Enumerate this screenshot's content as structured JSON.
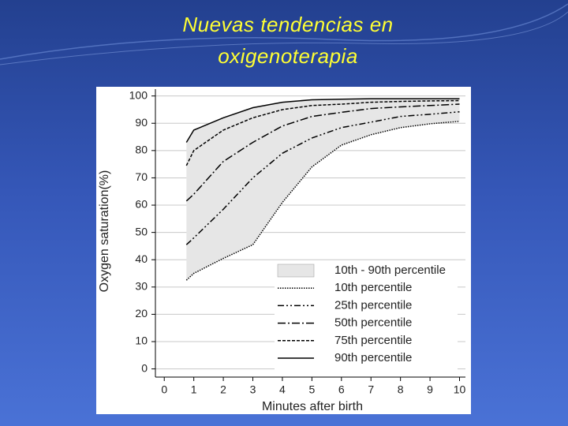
{
  "slide_title": [
    "Nuevas tendencias en",
    "oxigenoterapia"
  ],
  "chart_data": {
    "type": "line",
    "xlabel": "Minutes after birth",
    "ylabel": "Oxygen saturation(%)",
    "x": [
      0.75,
      1,
      2,
      3,
      4,
      5,
      6,
      7,
      8,
      9,
      10
    ],
    "band": {
      "name": "10th - 90th percentile",
      "color": "#e6e6e6",
      "between": [
        0,
        4
      ]
    },
    "series": [
      {
        "name": "10th percentile",
        "color": "#000000",
        "dash": "1.5,1.5",
        "values": [
          32.5,
          35,
          40.5,
          45.5,
          61,
          74,
          82,
          85.8,
          88.4,
          89.8,
          90.7
        ]
      },
      {
        "name": "25th percentile",
        "color": "#000000",
        "dash": "8,3,2,3,2,3",
        "values": [
          45.5,
          48,
          58.5,
          70,
          79,
          84.6,
          88.4,
          90.4,
          92.5,
          93.3,
          94.2
        ]
      },
      {
        "name": "50th percentile",
        "color": "#000000",
        "dash": "10,3,2,3",
        "values": [
          61.5,
          64,
          76,
          83,
          89,
          92.5,
          94,
          95.4,
          96,
          96.5,
          97
        ]
      },
      {
        "name": "75th percentile",
        "color": "#000000",
        "dash": "4,2",
        "values": [
          74.5,
          80,
          87.5,
          92,
          95,
          96.5,
          97,
          97.7,
          98,
          98.2,
          98.3
        ]
      },
      {
        "name": "90th percentile",
        "color": "#000000",
        "dash": "",
        "values": [
          83,
          87.5,
          92,
          95.7,
          97.7,
          98.6,
          98.8,
          99,
          99,
          99,
          99
        ]
      }
    ],
    "xlim": [
      -0.3,
      10.2
    ],
    "ylim": [
      -3,
      102.5
    ],
    "xticks": [
      0,
      1,
      2,
      3,
      4,
      5,
      6,
      7,
      8,
      9,
      10
    ],
    "yticks": [
      0,
      10,
      20,
      30,
      40,
      50,
      60,
      70,
      80,
      90,
      100
    ],
    "grid": true,
    "legend": "lower right"
  }
}
